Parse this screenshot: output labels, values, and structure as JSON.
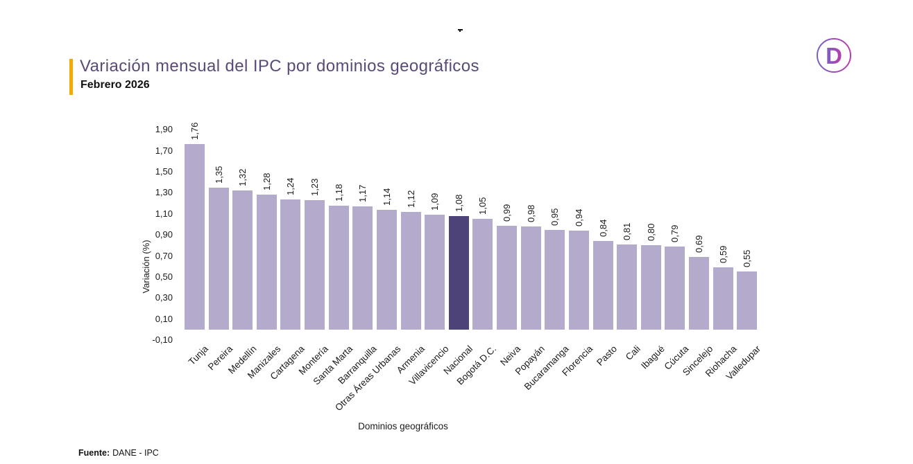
{
  "logo": {
    "letter": "D",
    "gradient_start": "#7B5FC0",
    "gradient_end": "#B83CB0"
  },
  "header": {
    "accent_color": "#F2A900",
    "title_color": "#5B4A79"
  },
  "chart_data": {
    "type": "bar",
    "title": "Variación mensual del IPC por dominios geográficos",
    "subtitle": "Febrero 2026",
    "xlabel": "Dominios geográficos",
    "ylabel": "Variación (%)",
    "ylim": [
      -0.1,
      1.9
    ],
    "ytick_step": 0.2,
    "grid": false,
    "legend": "none",
    "bar_color": "#B4AACB",
    "highlight_color": "#4E4378",
    "highlight_index": 11,
    "highlight_category": "Nacional",
    "categories": [
      "Tunja",
      "Pereira",
      "Medellín",
      "Manizales",
      "Cartagena",
      "Montería",
      "Santa Marta",
      "Barranquilla",
      "Otras Áreas Urbanas",
      "Armenia",
      "Villavicencio",
      "Nacional",
      "Bogotá D.C.",
      "Neiva",
      "Popayán",
      "Bucaramanga",
      "Florencia",
      "Pasto",
      "Cali",
      "Ibagué",
      "Cúcuta",
      "Sincelejo",
      "Riohacha",
      "Valledupar"
    ],
    "values": [
      1.76,
      1.35,
      1.32,
      1.28,
      1.24,
      1.23,
      1.18,
      1.17,
      1.14,
      1.12,
      1.09,
      1.08,
      1.05,
      0.99,
      0.98,
      0.95,
      0.94,
      0.84,
      0.81,
      0.8,
      0.79,
      0.69,
      0.59,
      0.55
    ],
    "value_labels": [
      "1,76",
      "1,35",
      "1,32",
      "1,28",
      "1,24",
      "1,23",
      "1,18",
      "1,17",
      "1,14",
      "1,12",
      "1,09",
      "1,08",
      "1,05",
      "0,99",
      "0,98",
      "0,95",
      "0,94",
      "0,84",
      "0,81",
      "0,80",
      "0,79",
      "0,69",
      "0,59",
      "0,55"
    ],
    "yticks": [
      {
        "label": "1,90",
        "value": 1.9
      },
      {
        "label": "1,70",
        "value": 1.7
      },
      {
        "label": "1,50",
        "value": 1.5
      },
      {
        "label": "1,30",
        "value": 1.3
      },
      {
        "label": "1,10",
        "value": 1.1
      },
      {
        "label": "0,90",
        "value": 0.9
      },
      {
        "label": "0,70",
        "value": 0.7
      },
      {
        "label": "0,50",
        "value": 0.5
      },
      {
        "label": "0,30",
        "value": 0.3
      },
      {
        "label": "0,10",
        "value": 0.1
      },
      {
        "label": "-0,10",
        "value": -0.1
      }
    ]
  },
  "footer": {
    "source_label": "Fuente:",
    "source_value": "DANE - IPC"
  }
}
